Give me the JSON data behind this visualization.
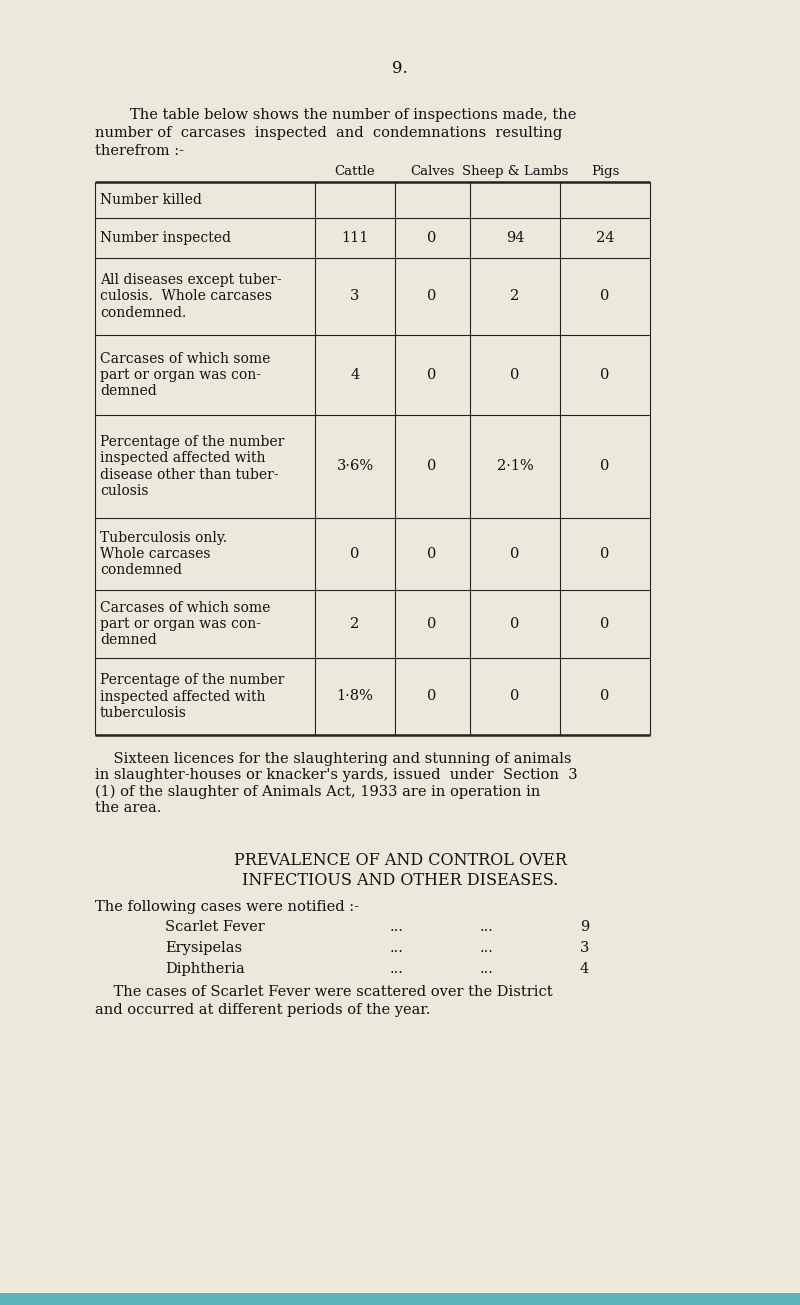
{
  "background_color": "#ede8dc",
  "page_number": "9.",
  "intro_line1": "The table below shows the number of inspections made, the",
  "intro_line2": "number of  carcases  inspected  and  condemnations  resulting",
  "intro_line3": "therefrom :-",
  "col_headers": [
    "Cattle",
    "Calves",
    "Sheep & Lambs",
    "Pigs"
  ],
  "row_labels": [
    "Number killed",
    "Number inspected",
    "All diseases except tuber-\nculosis.  Whole carcases\ncondemned.",
    "Carcases of which some\npart or organ was con-\ndemned",
    "Percentage of the number\ninspected affected with\ndisease other than tuber-\nculosis",
    "Tuberculosis only.\nWhole carcases\ncondemned",
    "Carcases of which some\npart or organ was con-\ndemned",
    "Percentage of the number\ninspected affected with\ntuberculosis"
  ],
  "table_data": [
    [
      "",
      "",
      "",
      ""
    ],
    [
      "111",
      "0",
      "94",
      "24"
    ],
    [
      "3",
      "0",
      "2",
      "0"
    ],
    [
      "4",
      "0",
      "0",
      "0"
    ],
    [
      "3·6%",
      "0",
      "2·1%",
      "0"
    ],
    [
      "0",
      "0",
      "0",
      "0"
    ],
    [
      "2",
      "0",
      "0",
      "0"
    ],
    [
      "1·8%",
      "0",
      "0",
      "0"
    ]
  ],
  "footer_text": "    Sixteen licences for the slaughtering and stunning of animals\nin slaughter-houses or knacker's yards, issued  under  Section  3\n(1) of the slaughter of Animals Act, 1933 are in operation in\nthe area.",
  "section_title_1": "PREVALENCE OF AND CONTROL OVER",
  "section_title_2": "INFECTIOUS AND OTHER DISEASES.",
  "notified_intro": "The following cases were notified :-",
  "diseases": [
    "Scarlet Fever",
    "Erysipelas",
    "Diphtheria"
  ],
  "disease_dots1": [
    "...",
    "...",
    "..."
  ],
  "disease_dots2": [
    "...",
    "...",
    "..."
  ],
  "disease_counts": [
    "9",
    "3",
    "4"
  ],
  "closing_text_1": "    The cases of Scarlet Fever were scattered over the District",
  "closing_text_2": "and occurred at different periods of the year.",
  "teal_bar_color": "#5ab5b8",
  "text_color": "#111111",
  "line_color": "#222222"
}
